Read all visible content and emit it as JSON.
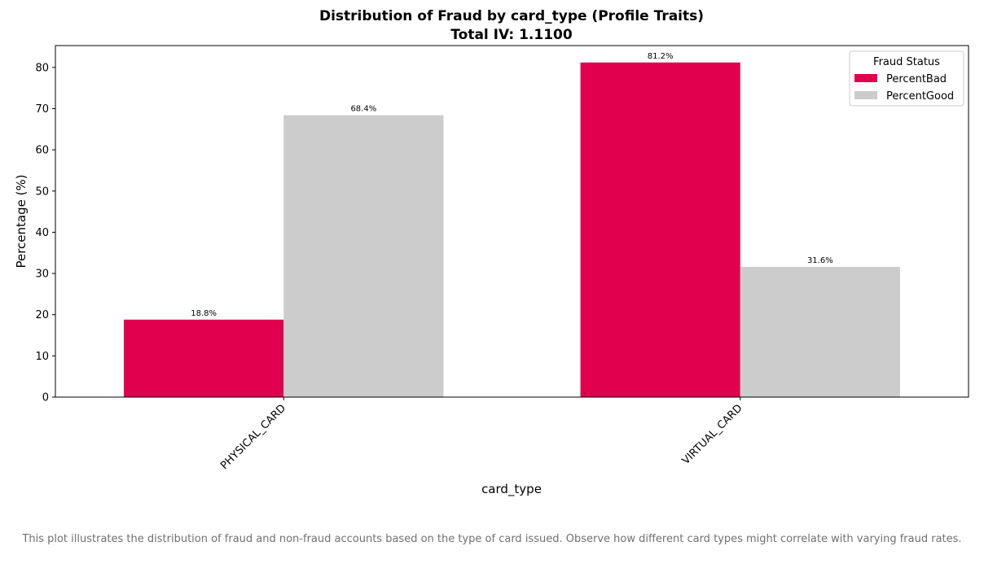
{
  "caption": "This plot illustrates the distribution of fraud and non-fraud accounts based on the type of card issued. Observe how different card types might correlate with varying fraud rates.",
  "chart_data": {
    "type": "bar",
    "title": "Distribution of Fraud by card_type (Profile Traits)",
    "subtitle": "Total IV: 1.1100",
    "xlabel": "card_type",
    "ylabel": "Percentage (%)",
    "categories": [
      "PHYSICAL_CARD",
      "VIRTUAL_CARD"
    ],
    "series": [
      {
        "name": "PercentBad",
        "values": [
          18.8,
          81.2
        ],
        "color": "#e0004d"
      },
      {
        "name": "PercentGood",
        "values": [
          68.4,
          31.6
        ],
        "color": "#cccccc"
      }
    ],
    "data_labels": [
      [
        "18.8%",
        "81.2%"
      ],
      [
        "68.4%",
        "31.6%"
      ]
    ],
    "ylim": [
      0,
      85.3
    ],
    "yticks": [
      0,
      10,
      20,
      30,
      40,
      50,
      60,
      70,
      80
    ],
    "grid": false,
    "legend": {
      "title": "Fraud Status",
      "placement": "top-right"
    }
  }
}
